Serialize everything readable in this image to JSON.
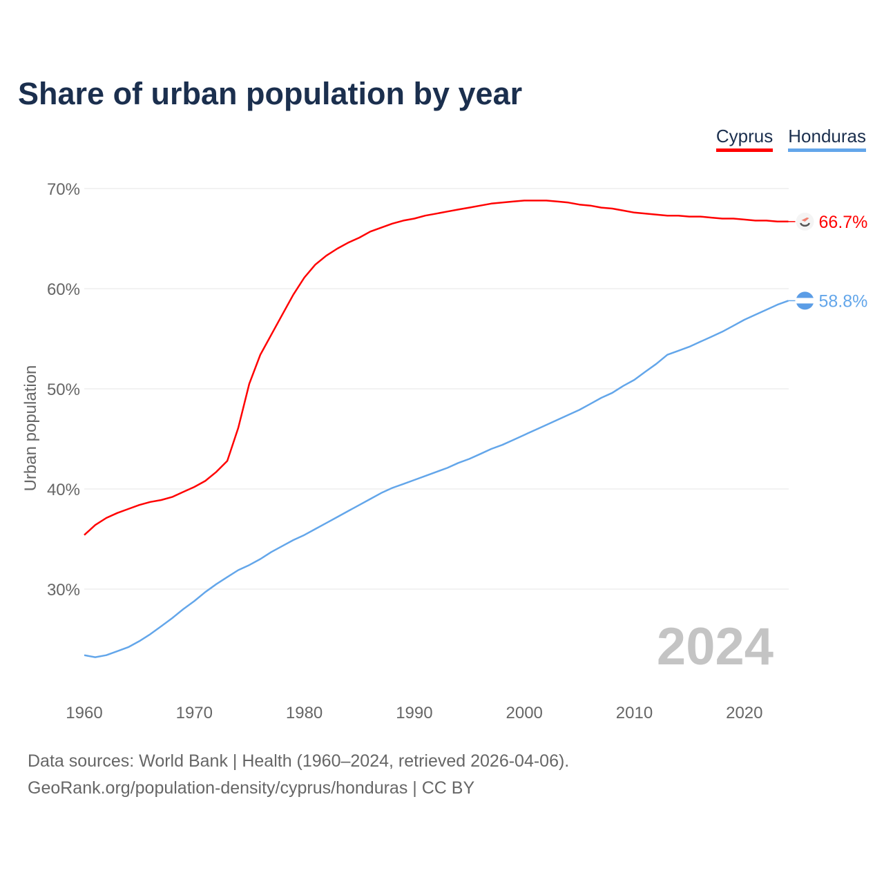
{
  "chart_data": {
    "type": "line",
    "title": "Share of urban population by year",
    "ylabel": "Urban population",
    "xlabel": "",
    "ylim": [
      20,
      70
    ],
    "xlim": [
      1960,
      2024
    ],
    "yticks": [
      30,
      40,
      50,
      60,
      70
    ],
    "ytick_labels": [
      "30%",
      "40%",
      "50%",
      "60%",
      "70%"
    ],
    "xticks": [
      1960,
      1970,
      1980,
      1990,
      2000,
      2010,
      2020
    ],
    "xtick_labels": [
      "1960",
      "1970",
      "1980",
      "1990",
      "2000",
      "2010",
      "2020"
    ],
    "grid": true,
    "legend_position": "top-right",
    "year_watermark": "2024",
    "x": [
      1960,
      1961,
      1962,
      1963,
      1964,
      1965,
      1966,
      1967,
      1968,
      1969,
      1970,
      1971,
      1972,
      1973,
      1974,
      1975,
      1976,
      1977,
      1978,
      1979,
      1980,
      1981,
      1982,
      1983,
      1984,
      1985,
      1986,
      1987,
      1988,
      1989,
      1990,
      1991,
      1992,
      1993,
      1994,
      1995,
      1996,
      1997,
      1998,
      1999,
      2000,
      2001,
      2002,
      2003,
      2004,
      2005,
      2006,
      2007,
      2008,
      2009,
      2010,
      2011,
      2012,
      2013,
      2014,
      2015,
      2016,
      2017,
      2018,
      2019,
      2020,
      2021,
      2022,
      2023,
      2024
    ],
    "series": [
      {
        "name": "Cyprus",
        "color": "#ff0000",
        "end_label": "66.7%",
        "values": [
          35.4,
          36.4,
          37.1,
          37.6,
          38.0,
          38.4,
          38.7,
          38.9,
          39.2,
          39.7,
          40.2,
          40.8,
          41.7,
          42.8,
          46.1,
          50.5,
          53.4,
          55.4,
          57.4,
          59.4,
          61.1,
          62.4,
          63.3,
          64.0,
          64.6,
          65.1,
          65.7,
          66.1,
          66.5,
          66.8,
          67.0,
          67.3,
          67.5,
          67.7,
          67.9,
          68.1,
          68.3,
          68.5,
          68.6,
          68.7,
          68.8,
          68.8,
          68.8,
          68.7,
          68.6,
          68.4,
          68.3,
          68.1,
          68.0,
          67.8,
          67.6,
          67.5,
          67.4,
          67.3,
          67.3,
          67.2,
          67.2,
          67.1,
          67.0,
          67.0,
          66.9,
          66.8,
          66.8,
          66.7,
          66.7
        ]
      },
      {
        "name": "Honduras",
        "color": "#63a6ea",
        "end_label": "58.8%",
        "values": [
          23.4,
          23.2,
          23.4,
          23.8,
          24.2,
          24.8,
          25.5,
          26.3,
          27.1,
          28.0,
          28.8,
          29.7,
          30.5,
          31.2,
          31.9,
          32.4,
          33.0,
          33.7,
          34.3,
          34.9,
          35.4,
          36.0,
          36.6,
          37.2,
          37.8,
          38.4,
          39.0,
          39.6,
          40.1,
          40.5,
          40.9,
          41.3,
          41.7,
          42.1,
          42.6,
          43.0,
          43.5,
          44.0,
          44.4,
          44.9,
          45.4,
          45.9,
          46.4,
          46.9,
          47.4,
          47.9,
          48.5,
          49.1,
          49.6,
          50.3,
          50.9,
          51.7,
          52.5,
          53.4,
          53.8,
          54.2,
          54.7,
          55.2,
          55.7,
          56.3,
          56.9,
          57.4,
          57.9,
          58.4,
          58.8
        ]
      }
    ]
  },
  "footer": {
    "line1": "Data sources: World Bank | Health (1960–2024, retrieved 2026-04-06).",
    "line2": "GeoRank.org/population-density/cyprus/honduras | CC BY"
  }
}
